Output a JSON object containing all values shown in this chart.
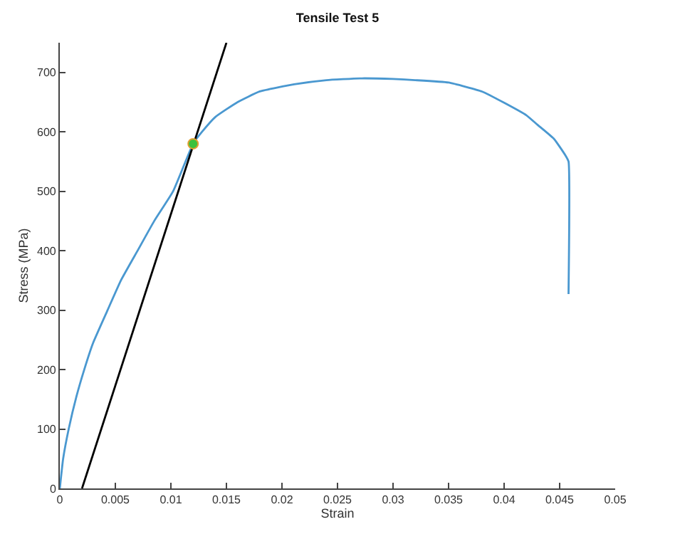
{
  "chart_data": {
    "type": "line",
    "title": "Tensile Test 5",
    "xlabel": "Strain",
    "ylabel": "Stress (MPa)",
    "xlim": [
      0,
      0.05
    ],
    "ylim": [
      0,
      750
    ],
    "xticks": [
      0,
      0.005,
      0.01,
      0.015,
      0.02,
      0.025,
      0.03,
      0.035,
      0.04,
      0.045,
      0.05
    ],
    "yticks": [
      0,
      100,
      200,
      300,
      400,
      500,
      600,
      700
    ],
    "grid": false,
    "marker": "none",
    "line_style": "solid",
    "series": [
      {
        "color": "#4a98d0",
        "x": [
          0,
          0.0003,
          0.0008,
          0.0015,
          0.0022,
          0.003,
          0.0043,
          0.0055,
          0.007,
          0.0085,
          0.0102,
          0.012,
          0.0128,
          0.014,
          0.016,
          0.018,
          0.0211,
          0.024,
          0.027,
          0.03,
          0.032,
          0.035,
          0.038,
          0.04,
          0.042,
          0.043,
          0.0445,
          0.0455,
          0.0458,
          0.0458
        ],
        "values": [
          0,
          50,
          100,
          155,
          200,
          245,
          300,
          350,
          400,
          450,
          500,
          580,
          600,
          625,
          650,
          668,
          680,
          687,
          690,
          689,
          687,
          683,
          668,
          649,
          628,
          612,
          588,
          561,
          550,
          327
        ]
      },
      {
        "color": "#000000",
        "x": [
          0.002,
          0.015
        ],
        "values": [
          0,
          750
        ]
      },
      {
        "type": "scatter",
        "color": "#3cc13c",
        "marker": "circle",
        "x": [
          0.012
        ],
        "values": [
          580
        ]
      }
    ]
  }
}
